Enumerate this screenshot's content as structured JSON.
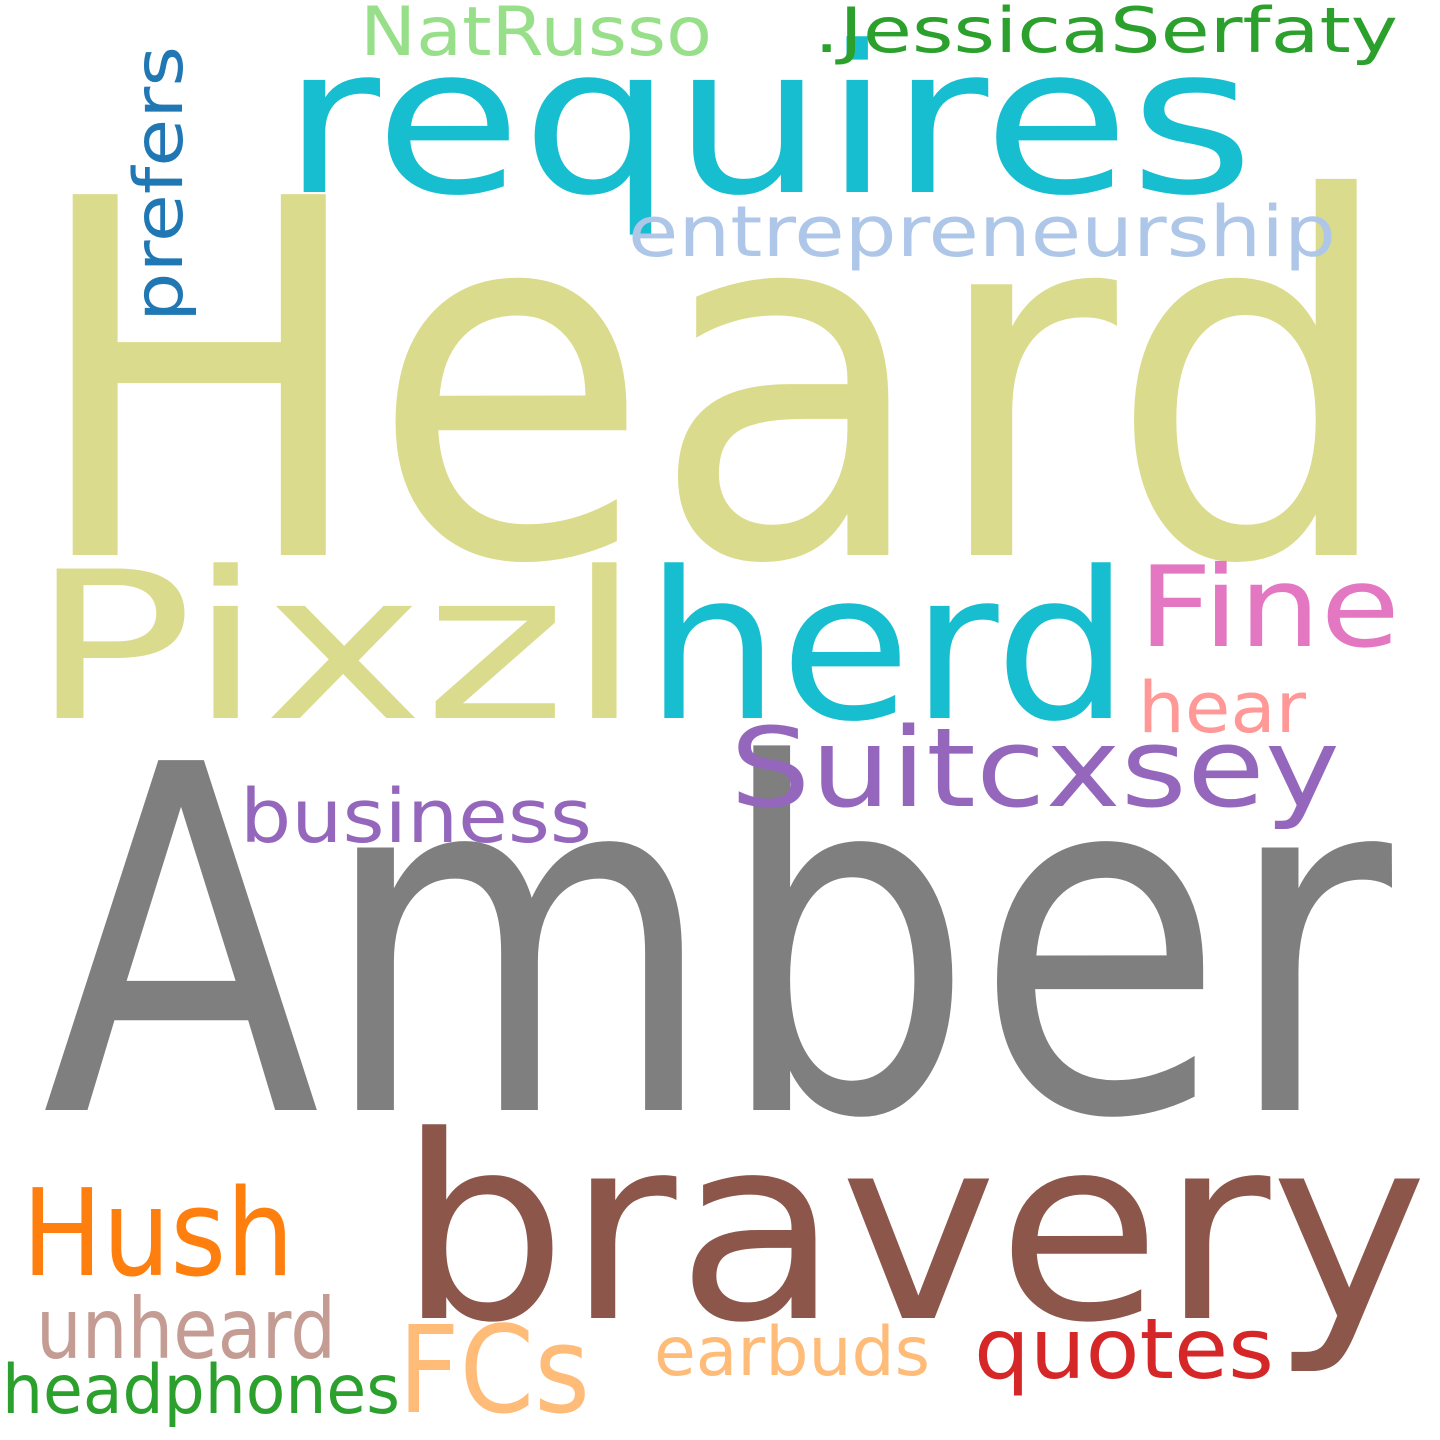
{
  "words": {
    "heard": {
      "text": "Heard",
      "color": "#dbdb8d"
    },
    "amber": {
      "text": "Amber",
      "color": "#7f7f7f"
    },
    "bravery": {
      "text": "bravery",
      "color": "#8c564b"
    },
    "requires": {
      "text": "requires",
      "color": "#17becf"
    },
    "pixzl": {
      "text": "Pixzl",
      "color": "#dbdb8d"
    },
    "herd": {
      "text": "herd",
      "color": "#17becf"
    },
    "fine": {
      "text": "Fine",
      "color": "#e377c2"
    },
    "suitcxsey": {
      "text": "Suitcxsey",
      "color": "#9467bd"
    },
    "hush": {
      "text": "Hush",
      "color": "#ff7f0e"
    },
    "fcs": {
      "text": "FCs",
      "color": "#ffbb78"
    },
    "quotes": {
      "text": "quotes",
      "color": "#d62728"
    },
    "unheard": {
      "text": "unheard",
      "color": "#c49c94"
    },
    "earbuds": {
      "text": "earbuds",
      "color": "#ffbb78"
    },
    "headphones": {
      "text": "headphones",
      "color": "#2ca02c"
    },
    "business": {
      "text": "business",
      "color": "#9467bd"
    },
    "hear": {
      "text": "hear",
      "color": "#ff9896"
    },
    "entrepreneurship": {
      "text": "entrepreneurship",
      "color": "#aec7e8"
    },
    "prefers": {
      "text": "prefers",
      "color": "#1f77b4"
    },
    "natrusso": {
      "text": "NatRusso",
      "color": "#98df8a"
    },
    "jessica": {
      "text": ".JessicaSerfaty",
      "color": "#2ca02c"
    }
  }
}
